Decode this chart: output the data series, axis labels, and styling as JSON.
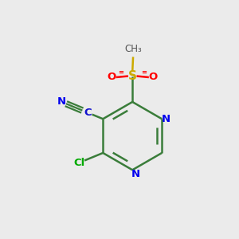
{
  "background_color": "#ebebeb",
  "bond_color": "#3a7d3a",
  "bond_width": 1.8,
  "atom_colors": {
    "N": "#0000ee",
    "S": "#ccaa00",
    "O": "#ff0000",
    "Cl": "#00aa00",
    "C_bond": "#3a7d3a",
    "CN_C": "#1111cc",
    "CN_N": "#0000ee"
  },
  "figsize": [
    3.0,
    3.0
  ],
  "dpi": 100
}
